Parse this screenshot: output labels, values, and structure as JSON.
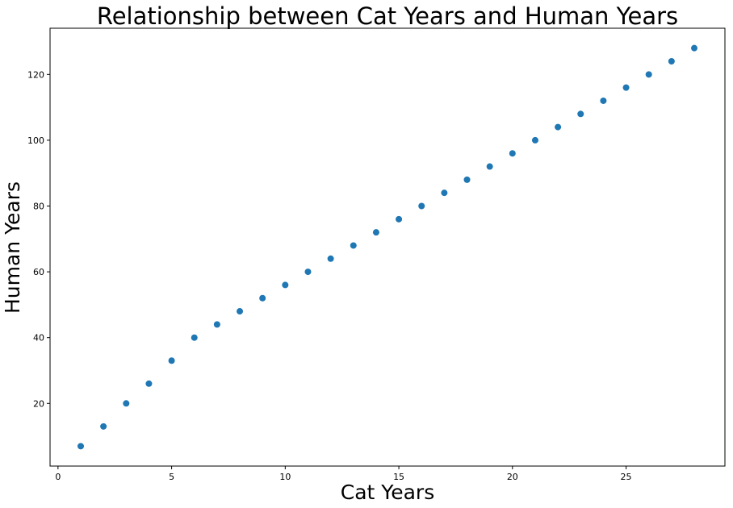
{
  "chart_data": {
    "type": "scatter",
    "title": "Relationship between Cat Years and Human Years",
    "xlabel": "Cat Years",
    "ylabel": "Human Years",
    "xlim": [
      -0.35,
      29.35
    ],
    "ylim": [
      0.95,
      134.05
    ],
    "xticks": [
      0,
      5,
      10,
      15,
      20,
      25
    ],
    "yticks": [
      20,
      40,
      60,
      80,
      100,
      120
    ],
    "grid": false,
    "legend": "none",
    "marker_color": "#1f77b4",
    "x": [
      1,
      2,
      3,
      4,
      5,
      6,
      7,
      8,
      9,
      10,
      11,
      12,
      13,
      14,
      15,
      16,
      17,
      18,
      19,
      20,
      21,
      22,
      23,
      24,
      25,
      26,
      27,
      28
    ],
    "y": [
      7,
      13,
      20,
      26,
      33,
      40,
      44,
      48,
      52,
      56,
      60,
      64,
      68,
      72,
      76,
      80,
      84,
      88,
      92,
      96,
      100,
      104,
      108,
      112,
      116,
      120,
      124,
      128
    ]
  }
}
